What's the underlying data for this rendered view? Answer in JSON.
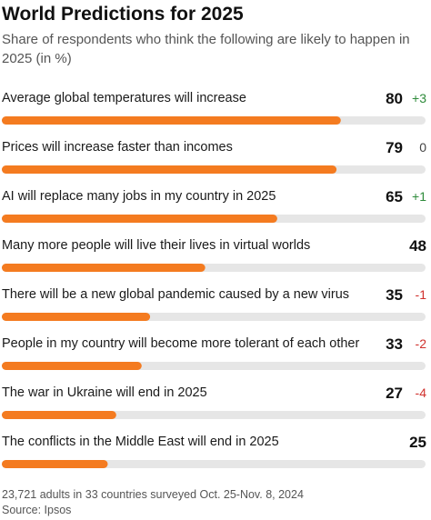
{
  "header": {
    "title": "World Predictions for 2025",
    "subtitle": "Share of respondents who think the following are likely to happen in 2025 (in %)"
  },
  "colors": {
    "bar": "#f47b20",
    "track": "#e6e6e6",
    "change_up": "#2e8b3a",
    "change_zero": "#444444",
    "change_down": "#d0312d"
  },
  "chart_data": {
    "type": "bar",
    "orientation": "horizontal",
    "xlim": [
      0,
      100
    ],
    "categories": [
      "Average global temperatures will increase",
      "Prices will increase faster than incomes",
      "AI will replace many jobs in my country in 2025",
      "Many more people will live their lives in virtual worlds",
      "There will be a new global pandemic caused by a new virus",
      "People in my country will become more tolerant of each other",
      "The war in Ukraine will end in 2025",
      "The conflicts in the Middle East will end in 2025"
    ],
    "values": [
      80,
      79,
      65,
      48,
      35,
      33,
      27,
      25
    ],
    "changes": [
      "+3",
      "0",
      "+1",
      "",
      "-1",
      "-2",
      "-4",
      ""
    ]
  },
  "footer": {
    "note": "23,721 adults in 33 countries surveyed Oct. 25-Nov. 8, 2024",
    "source": "Source: Ipsos"
  }
}
